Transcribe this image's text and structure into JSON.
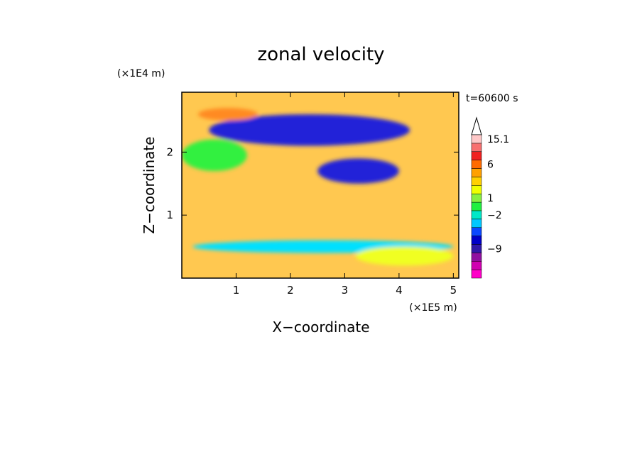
{
  "chart_data": {
    "type": "heatmap",
    "title": "zonal velocity",
    "xlabel": "X−coordinate",
    "ylabel": "Z−coordinate",
    "x_unit": "(×1E5 m)",
    "y_unit": "(×1E4 m)",
    "time_label": "t=60600 s",
    "xlim": [
      0,
      5.1
    ],
    "ylim": [
      0,
      2.95
    ],
    "x_ticks": [
      "1",
      "2",
      "3",
      "4",
      "5"
    ],
    "y_ticks": [
      "1",
      "2"
    ],
    "colorbar": {
      "labels": [
        "15.1",
        "6",
        "1",
        "−2",
        "−9"
      ],
      "colors": [
        "#ff00c8",
        "#d000b0",
        "#9010a0",
        "#3018a8",
        "#0000c8",
        "#0a48ff",
        "#00c8ff",
        "#00e8c8",
        "#20f040",
        "#88f040",
        "#f0ff00",
        "#ffd000",
        "#ffa000",
        "#ff6a00",
        "#f02020",
        "#f87070",
        "#ffc8c8"
      ]
    },
    "pattern": {
      "background": "#ffc850",
      "bands": [
        {
          "color": "#2020d8",
          "x0": 0.5,
          "z0": 2.1,
          "x1": 4.2,
          "z1": 2.6
        },
        {
          "color": "#2020d8",
          "x0": 2.5,
          "z0": 1.5,
          "x1": 4.0,
          "z1": 1.9
        },
        {
          "color": "#00e0ff",
          "x0": 0.2,
          "z0": 0.4,
          "x1": 5.0,
          "z1": 0.6
        },
        {
          "color": "#30f040",
          "x0": 0.0,
          "z0": 1.7,
          "x1": 1.2,
          "z1": 2.2
        },
        {
          "color": "#ff8a20",
          "x0": 0.3,
          "z0": 2.5,
          "x1": 1.4,
          "z1": 2.7
        },
        {
          "color": "#f0ff20",
          "x0": 3.2,
          "z0": 0.2,
          "x1": 5.0,
          "z1": 0.5
        }
      ]
    }
  }
}
